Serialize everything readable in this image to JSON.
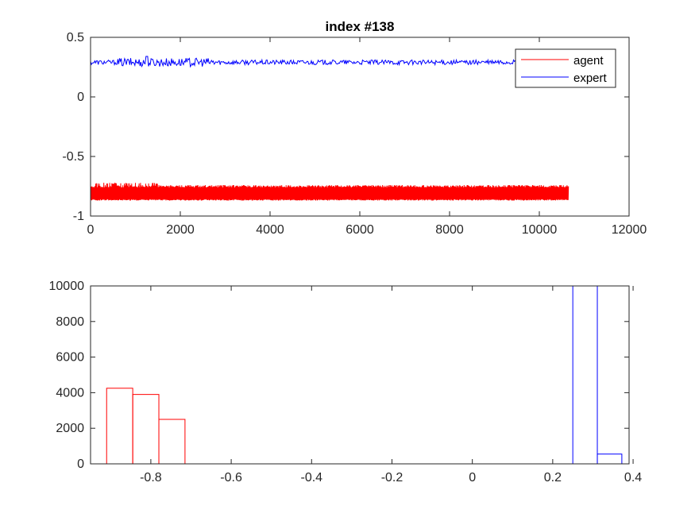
{
  "chart_data": [
    {
      "type": "line",
      "title": "index #138",
      "xlabel": "",
      "ylabel": "",
      "xlim": [
        0,
        12000
      ],
      "ylim": [
        -1,
        0.5
      ],
      "xticks": [
        0,
        2000,
        4000,
        6000,
        8000,
        10000,
        12000
      ],
      "yticks": [
        -1,
        -0.5,
        0,
        0.5
      ],
      "xtick_labels": [
        "0",
        "2000",
        "4000",
        "6000",
        "8000",
        "10000",
        "12000"
      ],
      "ytick_labels": [
        "-1",
        "-0.5",
        "0",
        "0.5"
      ],
      "legend": {
        "location": "top-right",
        "entries": [
          "agent",
          "expert"
        ]
      },
      "series": [
        {
          "name": "agent",
          "color": "#ff0000",
          "x_range": [
            0,
            10650
          ],
          "oscillation_low": -0.87,
          "oscillation_high": -0.72,
          "typical_low": -0.86,
          "typical_high": -0.74
        },
        {
          "name": "expert",
          "color": "#0000ff",
          "x_range": [
            0,
            9500
          ],
          "mean": 0.29,
          "noise_amplitude": 0.02,
          "max_value": 0.34
        }
      ]
    },
    {
      "type": "histogram",
      "title": "",
      "xlabel": "",
      "ylabel": "",
      "xlim": [
        -0.95,
        0.39
      ],
      "ylim": [
        0,
        10000
      ],
      "xticks": [
        -0.8,
        -0.6,
        -0.4,
        -0.2,
        0,
        0.2,
        0.4
      ],
      "yticks": [
        0,
        2000,
        4000,
        6000,
        8000,
        10000
      ],
      "xtick_labels": [
        "-0.8",
        "-0.6",
        "-0.4",
        "-0.2",
        "0",
        "0.2",
        "0.4"
      ],
      "ytick_labels": [
        "0",
        "2000",
        "4000",
        "6000",
        "8000",
        "10000"
      ],
      "series": [
        {
          "name": "agent",
          "color": "#ff0000",
          "bin_edges": [
            -0.91,
            -0.845,
            -0.78,
            -0.715
          ],
          "counts": [
            4250,
            3900,
            2500
          ]
        },
        {
          "name": "expert",
          "color": "#0000ff",
          "bin_edges": [
            0.25,
            0.311,
            0.372
          ],
          "counts": [
            10000,
            550
          ]
        }
      ]
    }
  ],
  "colors": {
    "axes": "#262626",
    "background": "#ffffff",
    "agent": "#ff0000",
    "expert": "#0000ff"
  }
}
